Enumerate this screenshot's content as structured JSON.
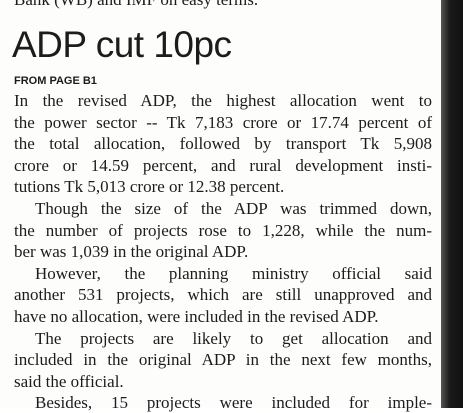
{
  "top_fragment": "Bank (WB) and IMF on easy terms.",
  "headline": "ADP cut 10pc",
  "kicker": "FROM PAGE B1",
  "paragraphs": [
    {
      "lines": [
        "In the revised ADP, the highest allocation went to",
        "the power sector -- Tk 7,183 crore or 17.74 percent of",
        "the total allocation, followed by transport Tk 5,908",
        "crore or 14.59 percent, and rural development insti-",
        "tutions Tk 5,013 crore or 12.38 percent."
      ]
    },
    {
      "lines": [
        "Though the size of the ADP was trimmed down,",
        "the number of projects rose to 1,228, while the num-",
        "ber was 1,039 in the original ADP."
      ]
    },
    {
      "lines": [
        "However, the planning ministry official said",
        "another 531 projects, which are still unapproved and",
        "have no allocation, were included in the revised ADP."
      ]
    },
    {
      "lines": [
        "The projects are likely to get allocation and",
        "included in the original ADP in the next few months,",
        "said the official."
      ]
    },
    {
      "lines": [
        "Besides, 15 projects were included for imple-"
      ]
    }
  ]
}
